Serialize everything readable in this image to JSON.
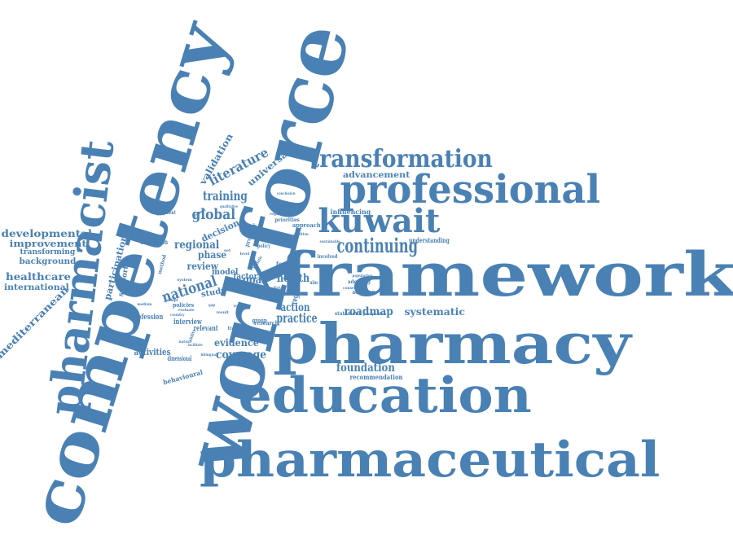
{
  "colors": {
    "word": "#4a81b4",
    "background": "#ffffff"
  },
  "words": {
    "framework": "framework",
    "pharmacy": "pharmacy",
    "education": "education",
    "pharmaceutical": "pharmaceutical",
    "workforce": "workforce",
    "competency": "competency",
    "pharmacist": "pharmacist",
    "professional": "professional",
    "transformation": "transformation",
    "kuwait": "kuwait",
    "continuing": "continuing",
    "global": "global",
    "training": "training",
    "literature": "literature",
    "validation": "validation",
    "universal": "universal",
    "national": "national",
    "regional": "regional",
    "review": "review",
    "phase": "phase",
    "decision": "decision",
    "goal": "goal",
    "health": "health",
    "action": "action",
    "practice": "practice",
    "roadmap": "roadmap",
    "systematic": "systematic",
    "foundation": "foundation",
    "coverage": "coverage",
    "evidence": "evidence",
    "activities": "activities",
    "developmental": "developmental",
    "improvement": "improvement",
    "transforming": "transforming",
    "background": "background",
    "healthcare": "healthcare",
    "international": "international",
    "mediterranean": "mediterranean",
    "participation": "participation",
    "support": "support",
    "model": "model",
    "study": "study",
    "factor": "factor",
    "need": "need",
    "advancement": "advancement",
    "influencing": "influencing",
    "understanding": "understanding",
    "recommendation": "recommendation",
    "behavioural": "behavioural",
    "dimensional": "dimensional",
    "profession": "profession",
    "interview": "interview",
    "relevant": "relevant",
    "federation": "federation",
    "employment": "employment",
    "region": "region",
    "approach": "approach",
    "priorities": "priorities",
    "regulation": "regulation",
    "adopting": "adopting",
    "adapting": "adapting",
    "population": "population",
    "statement": "statement",
    "perspective": "perspective",
    "sustainable": "sustainable",
    "involved": "involved",
    "conclusion": "conclusion",
    "qualitative": "qualitative",
    "provider": "provider",
    "policies": "policies",
    "translation": "translation",
    "strategies": "strategies",
    "research": "research",
    "maker": "maker",
    "focus": "focus",
    "perception": "perception",
    "system": "system",
    "policy": "policy",
    "method": "method",
    "concern": "concern",
    "consensus": "consensus",
    "evaluate": "evaluate",
    "group": "group",
    "bilingual": "bilingual",
    "facilitate": "facilitate",
    "nature": "nature",
    "country": "country",
    "medium": "medium",
    "systemic": "systemic",
    "ability": "ability",
    "adopt": "adopt",
    "result": "result",
    "guide": "guide",
    "holistic": "holistic",
    "change": "change",
    "addition": "addition",
    "level": "level",
    "data": "data",
    "aim": "aim",
    "role": "role",
    "gap": "gap",
    "set": "set"
  }
}
